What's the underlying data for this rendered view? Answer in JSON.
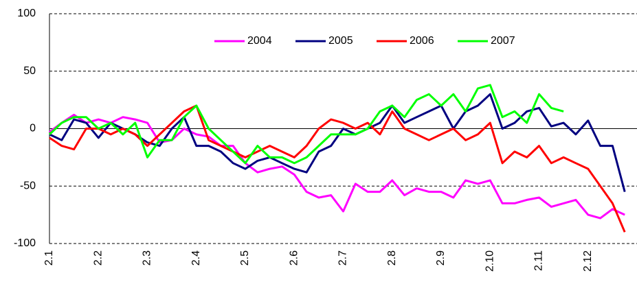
{
  "chart_data": {
    "type": "line",
    "categories": [
      "2.1",
      null,
      null,
      null,
      "2.2",
      null,
      null,
      null,
      "2.3",
      null,
      null,
      null,
      "2.4",
      null,
      null,
      null,
      "2.5",
      null,
      null,
      null,
      "2.6",
      null,
      null,
      null,
      "2.7",
      null,
      null,
      null,
      "2.8",
      null,
      null,
      null,
      "2.9",
      null,
      null,
      null,
      "2.10",
      null,
      null,
      null,
      "2.11",
      null,
      null,
      null,
      "2.12",
      null,
      null,
      null
    ],
    "series": [
      {
        "name": "2004",
        "color": "#ff00ff",
        "values": [
          -3,
          5,
          12,
          5,
          8,
          5,
          10,
          8,
          5,
          -12,
          -10,
          0,
          -5,
          -7,
          -15,
          -15,
          -30,
          -38,
          -35,
          -33,
          -40,
          -55,
          -60,
          -58,
          -72,
          -48,
          -55,
          -55,
          -45,
          -58,
          -52,
          -55,
          -55,
          -60,
          -45,
          -48,
          -45,
          -65,
          -65,
          -62,
          -60,
          -68,
          -65,
          -62,
          -75,
          -78,
          -70,
          -75
        ]
      },
      {
        "name": "2005",
        "color": "#000080",
        "values": [
          -5,
          -10,
          8,
          5,
          -8,
          5,
          0,
          -5,
          -12,
          -15,
          0,
          10,
          -15,
          -15,
          -20,
          -30,
          -35,
          -28,
          -25,
          -30,
          -35,
          -38,
          -20,
          -15,
          0,
          -5,
          0,
          5,
          20,
          5,
          10,
          15,
          20,
          0,
          15,
          20,
          30,
          0,
          5,
          15,
          18,
          2,
          5,
          -5,
          7,
          -15,
          -15,
          -55
        ]
      },
      {
        "name": "2006",
        "color": "#ff0000",
        "values": [
          -8,
          -15,
          -18,
          0,
          0,
          -5,
          0,
          -5,
          -15,
          -5,
          5,
          15,
          20,
          -10,
          -15,
          -20,
          -25,
          -20,
          -15,
          -20,
          -25,
          -15,
          0,
          8,
          5,
          0,
          5,
          -5,
          15,
          0,
          -5,
          -10,
          -5,
          0,
          -10,
          -5,
          5,
          -30,
          -20,
          -25,
          -15,
          -30,
          -25,
          -30,
          -35,
          -50,
          -65,
          -90
        ]
      },
      {
        "name": "2007",
        "color": "#00ff00",
        "values": [
          -5,
          5,
          10,
          10,
          0,
          5,
          -5,
          5,
          -25,
          -10,
          -10,
          10,
          20,
          0,
          -10,
          -20,
          -30,
          -15,
          -25,
          -25,
          -30,
          -25,
          -15,
          -5,
          -5,
          -5,
          0,
          15,
          20,
          10,
          25,
          30,
          20,
          30,
          15,
          35,
          38,
          10,
          15,
          5,
          30,
          18,
          15,
          null,
          null,
          null,
          null,
          null
        ]
      }
    ],
    "ylim": [
      -100,
      100
    ],
    "yticks": [
      -100,
      -50,
      0,
      50,
      100
    ],
    "grid": true,
    "legend": "top"
  }
}
